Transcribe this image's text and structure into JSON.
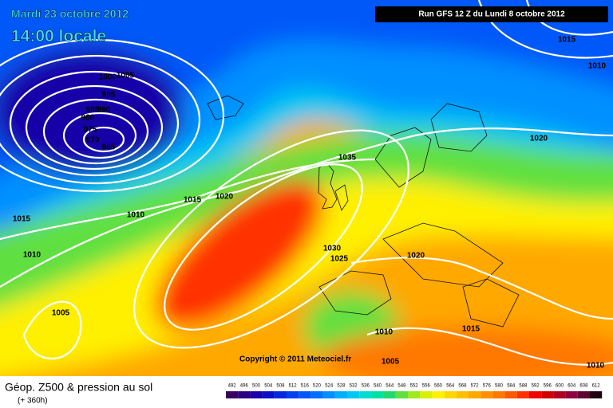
{
  "header": {
    "date": "Mardi 23 octobre 2012",
    "time": "14:00 locale",
    "run": "Run GFS 12 Z du Lundi 8 octobre 2012"
  },
  "isobar_labels": [
    "1005",
    "1000",
    "995",
    "990",
    "985",
    "980",
    "975",
    "970",
    "965",
    "1015",
    "1020",
    "1010",
    "1015",
    "1010",
    "1005",
    "1035",
    "1030",
    "1025",
    "1020",
    "1020",
    "1015",
    "1010",
    "1015",
    "1010",
    "1005",
    "1010"
  ],
  "copyright": "Copyright © 2011 Meteociel.fr",
  "footer": {
    "title": "Géop. Z500 & pression au sol",
    "lead": "(+ 360h)"
  },
  "legend": {
    "labels": [
      492,
      496,
      500,
      504,
      508,
      512,
      516,
      520,
      524,
      528,
      532,
      536,
      540,
      544,
      548,
      552,
      556,
      560,
      564,
      568,
      572,
      576,
      580,
      584,
      588,
      592,
      596,
      600,
      604,
      608,
      612
    ],
    "colors": [
      "#3a0060",
      "#2a0080",
      "#1800a8",
      "#0a10c8",
      "#0028e0",
      "#0040f0",
      "#0058f8",
      "#0070ff",
      "#0090ff",
      "#00b0ff",
      "#00c8f0",
      "#00dcd0",
      "#00e0a0",
      "#20d870",
      "#60e040",
      "#a0e820",
      "#d8f000",
      "#fff000",
      "#ffd800",
      "#ffc000",
      "#ffa800",
      "#ff9000",
      "#ff7800",
      "#ff5800",
      "#ff3000",
      "#f00000",
      "#d00000",
      "#b00020",
      "#900040",
      "#600030",
      "#200010"
    ]
  }
}
